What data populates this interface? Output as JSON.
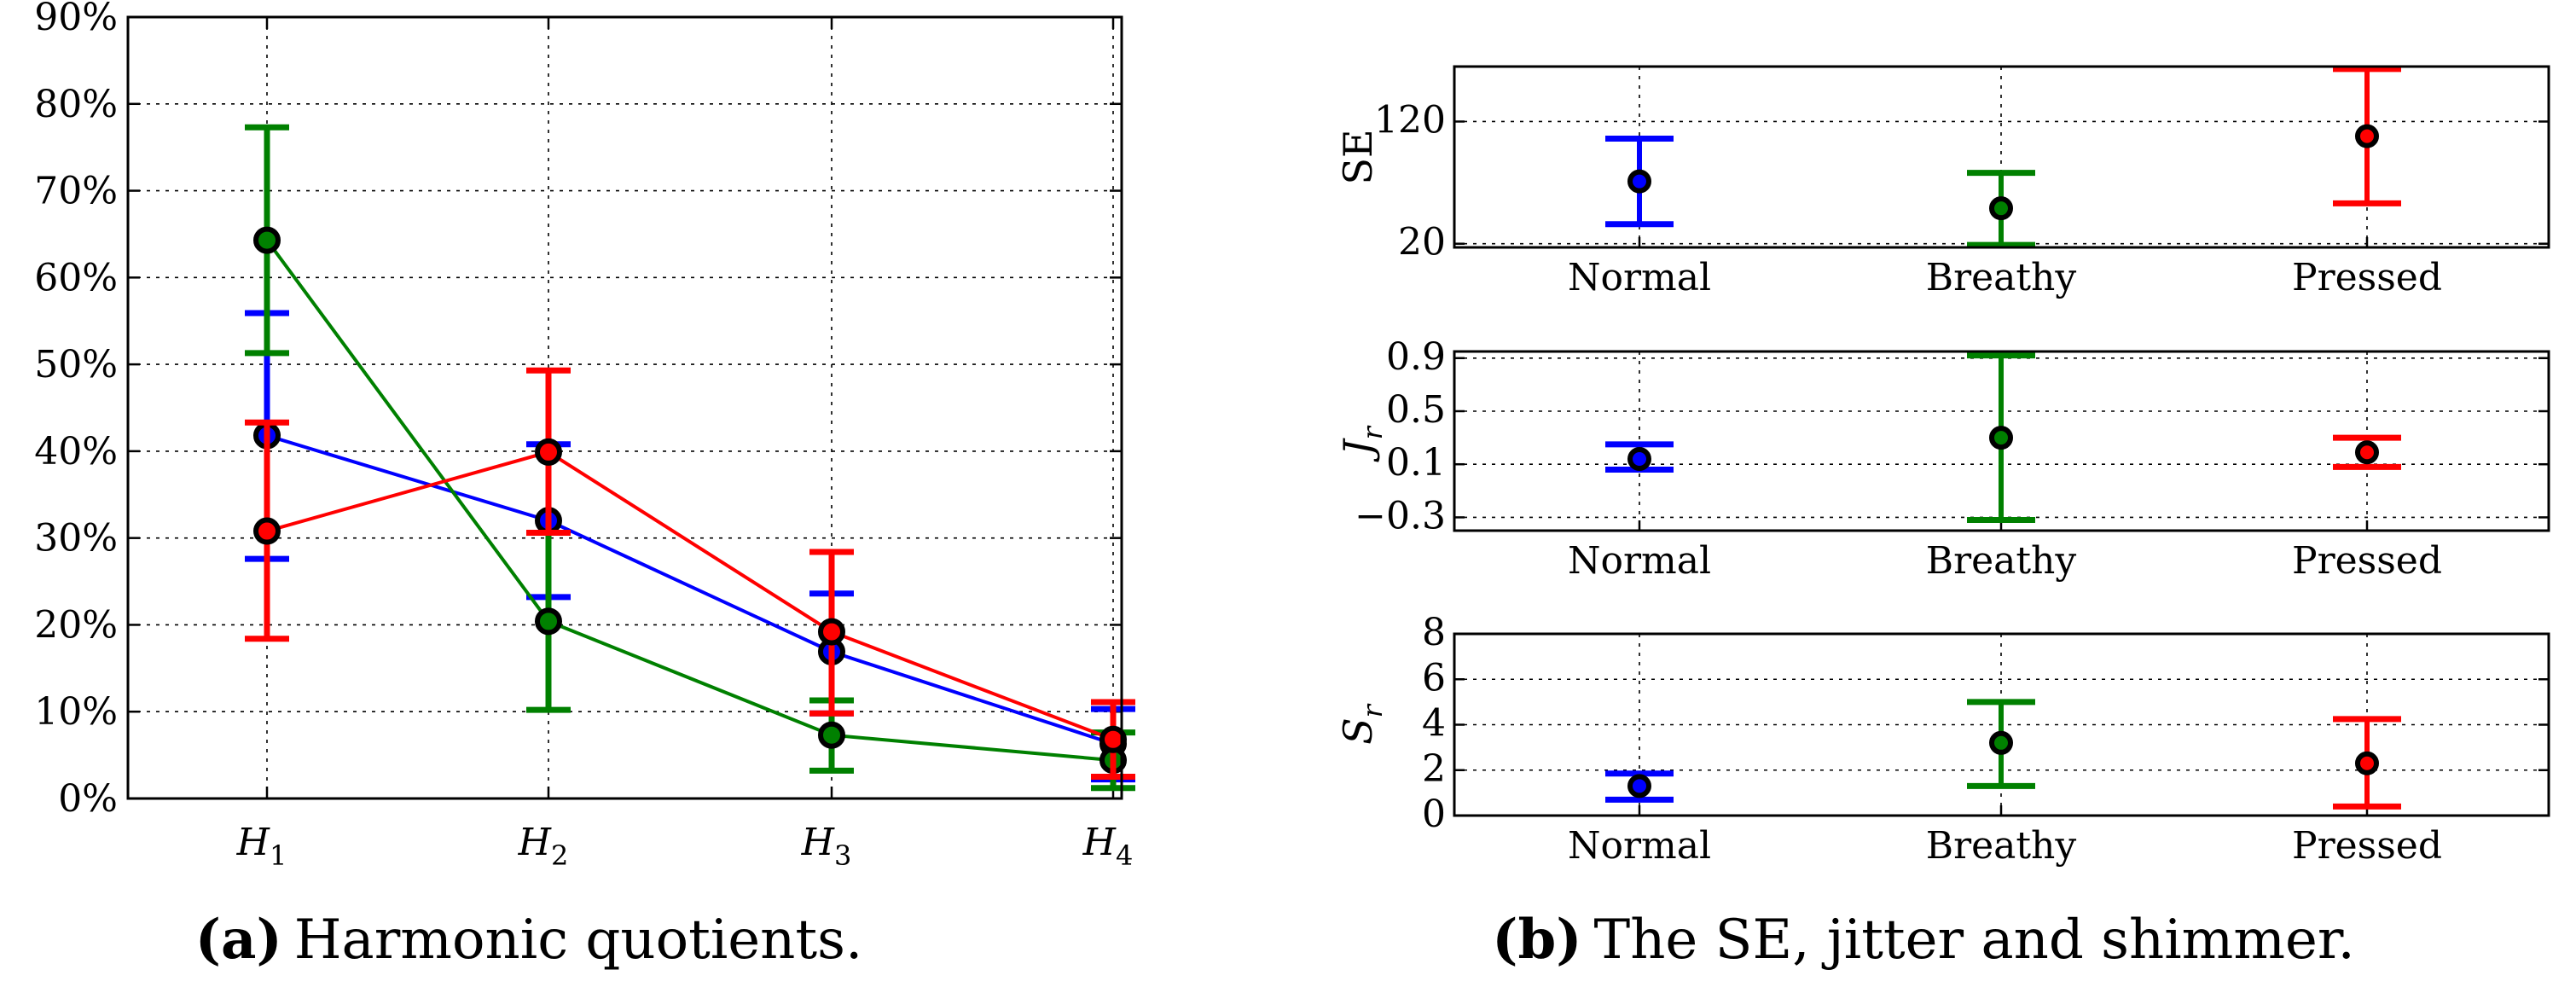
{
  "chart_data": [
    {
      "id": "a",
      "type": "line-errorbar",
      "title": "",
      "xlabel": "",
      "ylabel": "",
      "categories": [
        "H1",
        "H2",
        "H3",
        "H4"
      ],
      "category_subscripts": [
        "1",
        "2",
        "3",
        "4"
      ],
      "category_base": "H",
      "ylim": [
        0,
        90
      ],
      "yticks": [
        "0%",
        "10%",
        "20%",
        "30%",
        "40%",
        "50%",
        "60%",
        "70%",
        "80%",
        "90%"
      ],
      "ytick_values": [
        0,
        10,
        20,
        30,
        40,
        50,
        60,
        70,
        80,
        90
      ],
      "grid": true,
      "series": [
        {
          "name": "Normal",
          "color": "#0000ff",
          "values": [
            41.8,
            32.0,
            16.9,
            6.3
          ],
          "err_low": [
            27.6,
            23.2,
            9.8,
            2.2
          ],
          "err_high": [
            55.9,
            40.8,
            23.6,
            10.3
          ]
        },
        {
          "name": "Breathy",
          "color": "#008000",
          "values": [
            64.3,
            20.4,
            7.3,
            4.4
          ],
          "err_low": [
            51.3,
            10.2,
            3.2,
            1.2
          ],
          "err_high": [
            77.3,
            30.6,
            11.3,
            7.6
          ]
        },
        {
          "name": "Pressed",
          "color": "#ff0000",
          "values": [
            30.8,
            39.9,
            19.2,
            6.8
          ],
          "err_low": [
            18.4,
            30.6,
            9.8,
            2.5
          ],
          "err_high": [
            43.3,
            49.3,
            28.4,
            11.1
          ]
        }
      ],
      "caption_label": "(a)",
      "caption_text": "Harmonic quotients."
    },
    {
      "id": "b1",
      "type": "errorbar",
      "ylabel": "SE",
      "categories": [
        "Normal",
        "Breathy",
        "Pressed"
      ],
      "ylim": [
        17,
        165
      ],
      "yticks": [
        "20",
        "120"
      ],
      "ytick_values": [
        20,
        120
      ],
      "grid": true,
      "points": [
        {
          "name": "Normal",
          "color": "#0000ff",
          "value": 71,
          "err_low": 36,
          "err_high": 106
        },
        {
          "name": "Breathy",
          "color": "#008000",
          "value": 49,
          "err_low": 19,
          "err_high": 78
        },
        {
          "name": "Pressed",
          "color": "#ff0000",
          "value": 108,
          "err_low": 53,
          "err_high": 163
        }
      ]
    },
    {
      "id": "b2",
      "type": "errorbar",
      "ylabel": "J",
      "ylabel_subscript": "r",
      "categories": [
        "Normal",
        "Breathy",
        "Pressed"
      ],
      "ylim": [
        -0.4,
        0.95
      ],
      "yticks": [
        "−0.3",
        "0.1",
        "0.5",
        "0.9"
      ],
      "ytick_values": [
        -0.3,
        0.1,
        0.5,
        0.9
      ],
      "grid": true,
      "points": [
        {
          "name": "Normal",
          "color": "#0000ff",
          "value": 0.14,
          "err_low": 0.06,
          "err_high": 0.25
        },
        {
          "name": "Breathy",
          "color": "#008000",
          "value": 0.3,
          "err_low": -0.32,
          "err_high": 0.92
        },
        {
          "name": "Pressed",
          "color": "#ff0000",
          "value": 0.19,
          "err_low": 0.08,
          "err_high": 0.3
        }
      ]
    },
    {
      "id": "b3",
      "type": "errorbar",
      "ylabel": "S",
      "ylabel_subscript": "r",
      "categories": [
        "Normal",
        "Breathy",
        "Pressed"
      ],
      "ylim": [
        0,
        8
      ],
      "yticks": [
        "0",
        "2",
        "4",
        "6",
        "8"
      ],
      "ytick_values": [
        0,
        2,
        4,
        6,
        8
      ],
      "grid": true,
      "points": [
        {
          "name": "Normal",
          "color": "#0000ff",
          "value": 1.3,
          "err_low": 0.7,
          "err_high": 1.85
        },
        {
          "name": "Breathy",
          "color": "#008000",
          "value": 3.2,
          "err_low": 1.3,
          "err_high": 5.0
        },
        {
          "name": "Pressed",
          "color": "#ff0000",
          "value": 2.3,
          "err_low": 0.4,
          "err_high": 4.25
        }
      ],
      "caption_label": "(b)",
      "caption_text": "The SE, jitter and shimmer."
    }
  ]
}
